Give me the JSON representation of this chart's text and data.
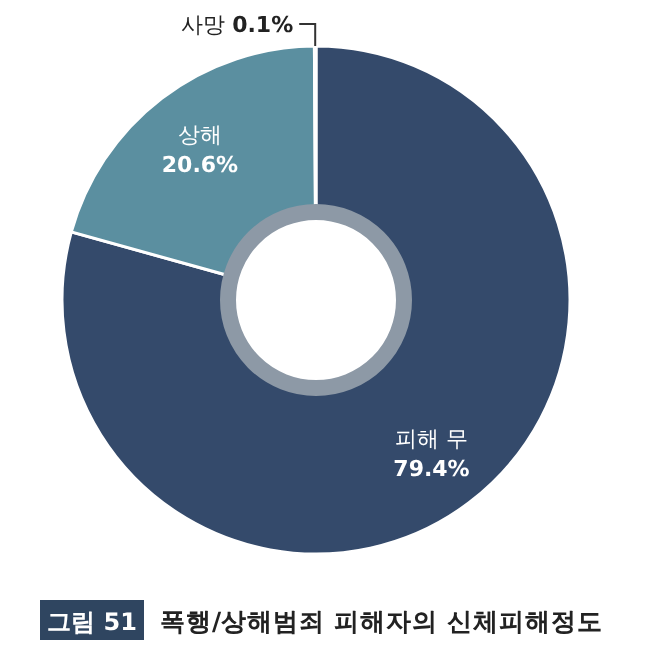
{
  "chart_data": {
    "type": "donut",
    "title": "폭행/상해범죄 피해자의 신체피해정도",
    "subtitle": "그림 51",
    "categories": [
      "피해 무",
      "상해",
      "사망"
    ],
    "values": [
      79.4,
      20.6,
      0.1
    ],
    "colors": [
      "#344a6b",
      "#5b8fa0",
      "#ffffff"
    ],
    "value_labels": [
      "79.4%",
      "20.6%",
      "0.1%"
    ]
  }
}
